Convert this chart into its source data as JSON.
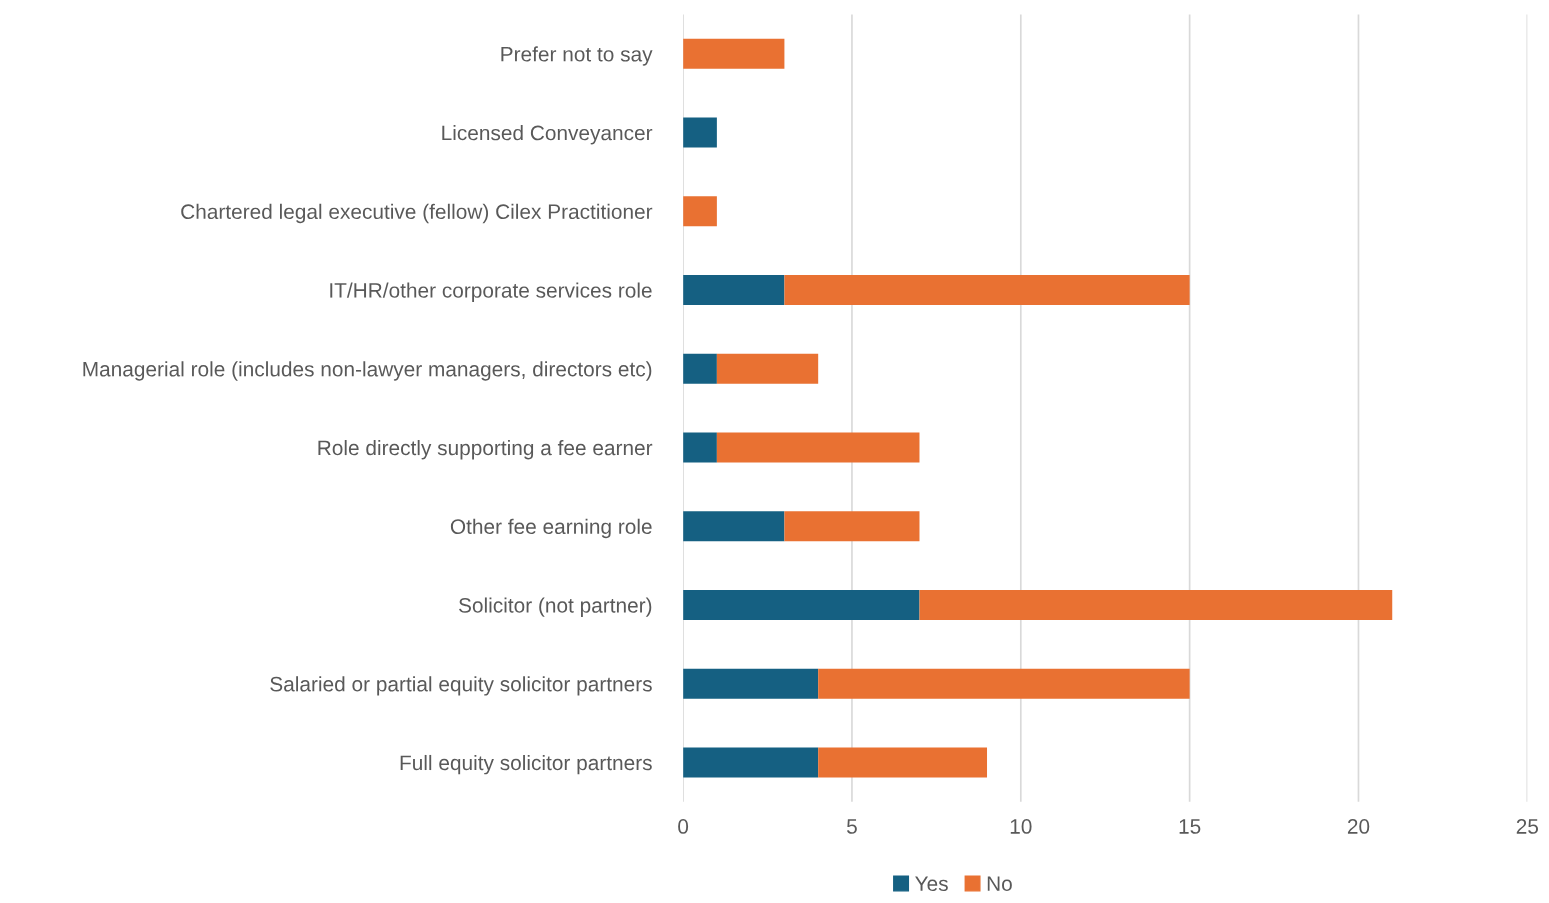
{
  "chart_data": {
    "type": "bar",
    "orientation": "horizontal",
    "stacked": true,
    "categories": [
      "Prefer not to say",
      "Licensed Conveyancer",
      "Chartered legal executive (fellow) Cilex Practitioner",
      "IT/HR/other corporate services role",
      "Managerial role (includes non-lawyer managers, directors etc)",
      "Role directly supporting a fee earner",
      "Other fee earning role",
      "Solicitor (not partner)",
      "Salaried or partial equity solicitor partners",
      "Full equity solicitor partners"
    ],
    "series": [
      {
        "name": "Yes",
        "color": "#156082",
        "values": [
          0,
          1,
          0,
          3,
          1,
          1,
          3,
          7,
          4,
          4
        ]
      },
      {
        "name": "No",
        "color": "#e97132",
        "values": [
          3,
          0,
          1,
          12,
          3,
          6,
          4,
          14,
          11,
          5
        ]
      }
    ],
    "xlim": [
      0,
      25
    ],
    "xticks": [
      0,
      5,
      10,
      15,
      20,
      25
    ],
    "grid": "x",
    "legend": "bottom"
  }
}
